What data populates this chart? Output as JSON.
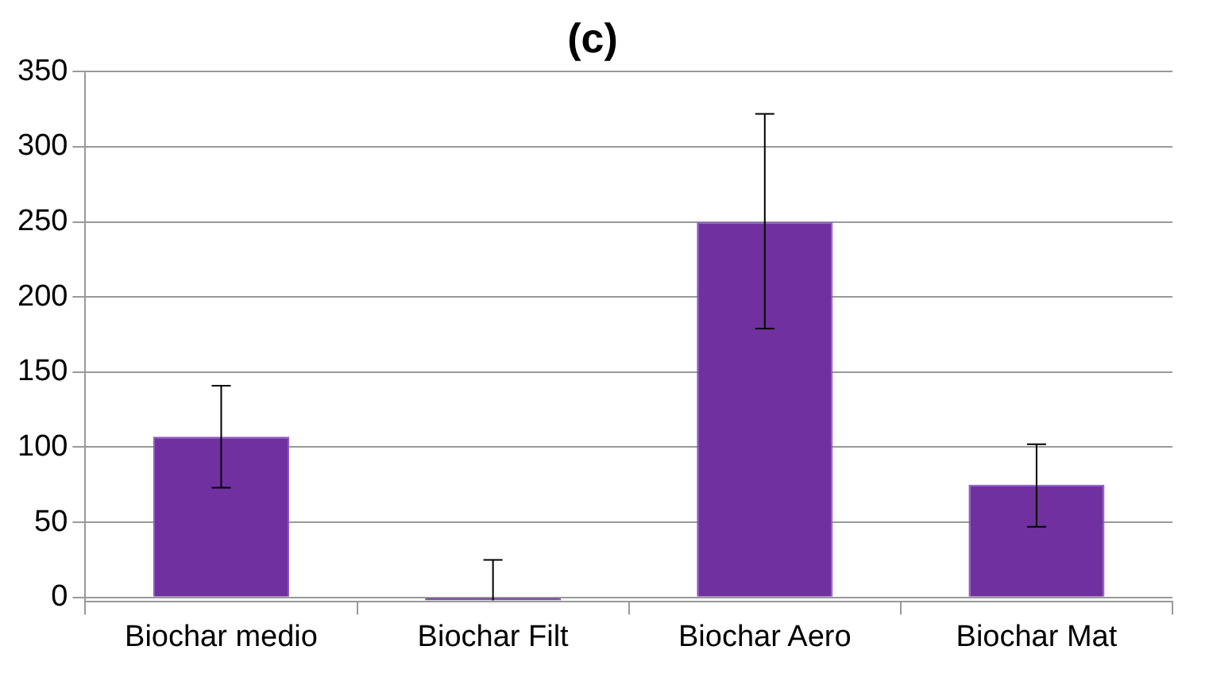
{
  "chart_data": {
    "type": "bar",
    "title": "(c)",
    "categories": [
      "Biochar medio",
      "Biochar Filt",
      "Biochar Aero",
      "Biochar Mat"
    ],
    "values": [
      107,
      -2,
      250,
      75
    ],
    "errors": [
      [
        73,
        141
      ],
      [
        -2,
        25
      ],
      [
        179,
        322
      ],
      [
        47,
        102
      ]
    ],
    "color": "#7030a0",
    "ylim": [
      -3,
      350
    ],
    "yticks": [
      0,
      50,
      100,
      150,
      200,
      250,
      300,
      350
    ],
    "grid": "y",
    "legend": false
  }
}
